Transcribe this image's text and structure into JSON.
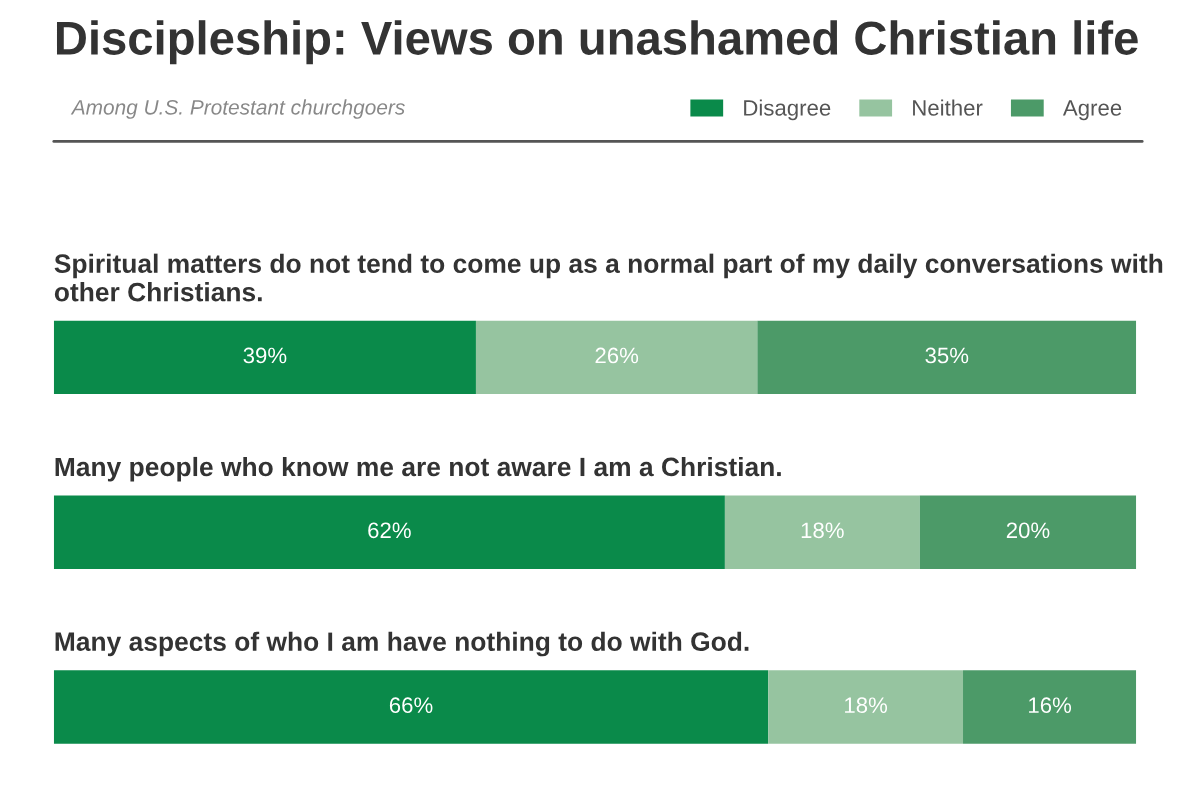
{
  "chart_data": {
    "type": "bar",
    "orientation": "horizontal",
    "stacked": true,
    "title": "Discipleship: Views on unashamed Christian life",
    "subtitle": "Among U.S. Protestant churchgoers",
    "categories": [
      "Spiritual matters do not tend to come up as a normal part of my daily conversations with other Christians.",
      "Many people who know me are not aware I am a Christian.",
      "Many aspects of who I am have nothing to do with God."
    ],
    "series": [
      {
        "name": "Disagree",
        "color": "#0a8a4a",
        "values": [
          39,
          62,
          66
        ],
        "value_labels": [
          "39%",
          "62%",
          "66%"
        ]
      },
      {
        "name": "Neither",
        "color": "#96c4a0",
        "values": [
          26,
          18,
          18
        ],
        "value_labels": [
          "26%",
          "18%",
          "18%"
        ]
      },
      {
        "name": "Agree",
        "color": "#4c9a68",
        "values": [
          35,
          20,
          16
        ],
        "value_labels": [
          "35%",
          "20%",
          "16%"
        ]
      }
    ],
    "legend": "top right"
  }
}
